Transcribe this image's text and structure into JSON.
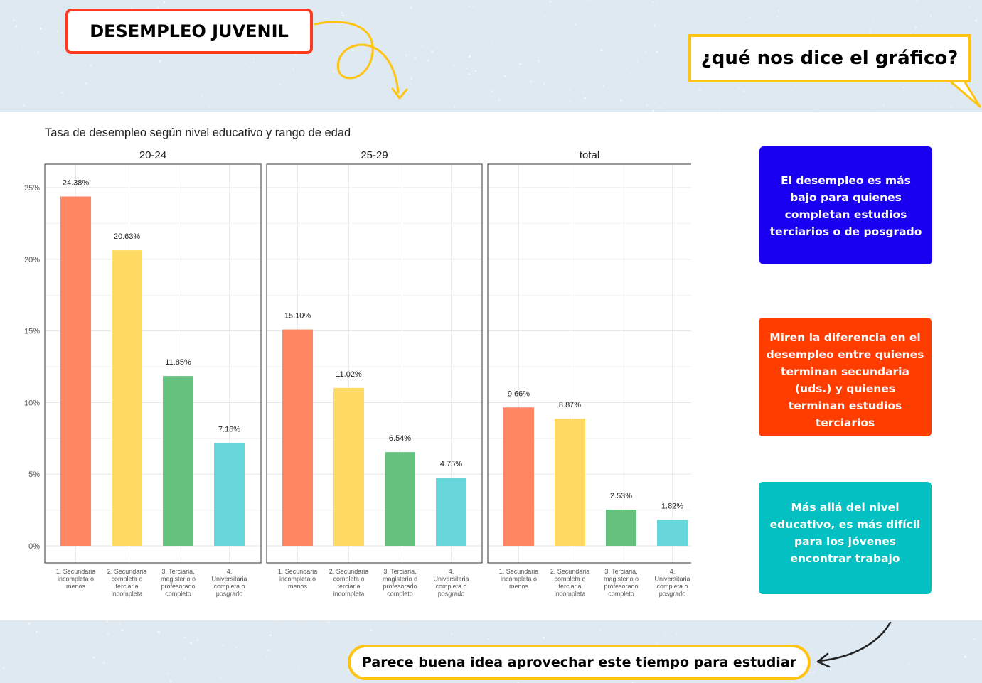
{
  "header": {
    "title": "DESEMPLEO JUVENIL",
    "question": "¿qué nos dice el gráfico?"
  },
  "callouts": {
    "blue": "El desempleo es más bajo para quienes completan estudios terciarios o de posgrado",
    "orange": "Miren la diferencia en el desempleo entre quienes terminan secundaria (uds.) y quienes terminan estudios terciarios",
    "teal": "Más allá del nivel educativo, es más difícil para los jóvenes encontrar trabajo"
  },
  "footer": {
    "message": "Parece buena idea aprovechar este tiempo para estudiar"
  },
  "colors": {
    "title_border": "#ff3b1f",
    "accent_yellow": "#ffc312",
    "callout_blue": "#1a00f0",
    "callout_orange": "#ff3d00",
    "callout_teal": "#05c0c2",
    "series": [
      "#ff8660",
      "#ffda63",
      "#65c27e",
      "#67d6da"
    ]
  },
  "chart_data": {
    "type": "bar",
    "title": "Tasa de desempleo según nivel educativo y rango de edad",
    "xlabel": "",
    "ylabel": "",
    "ylim": [
      0,
      0.25
    ],
    "y_ticks": [
      "0%",
      "5%",
      "10%",
      "15%",
      "20%",
      "25%"
    ],
    "y_tick_values": [
      0,
      0.05,
      0.1,
      0.15,
      0.2,
      0.25
    ],
    "grid": true,
    "categories": [
      [
        "1. Secundaria",
        "incompleta o",
        "menos"
      ],
      [
        "2. Secundaria",
        "completa o",
        "terciaria",
        "incompleta"
      ],
      [
        "3. Terciaria,",
        "magisterio o",
        "profesorado",
        "completo"
      ],
      [
        "4.",
        "Universitaria",
        "completa o",
        "posgrado"
      ]
    ],
    "facets": [
      {
        "name": "20-24",
        "values": [
          0.2438,
          0.2063,
          0.1185,
          0.0716
        ],
        "labels": [
          "24.38%",
          "20.63%",
          "11.85%",
          "7.16%"
        ]
      },
      {
        "name": "25-29",
        "values": [
          0.151,
          0.1102,
          0.0654,
          0.0475
        ],
        "labels": [
          "15.10%",
          "11.02%",
          "6.54%",
          "4.75%"
        ]
      },
      {
        "name": "total",
        "values": [
          0.0966,
          0.0887,
          0.0253,
          0.0182
        ],
        "labels": [
          "9.66%",
          "8.87%",
          "2.53%",
          "1.82%"
        ]
      }
    ]
  }
}
